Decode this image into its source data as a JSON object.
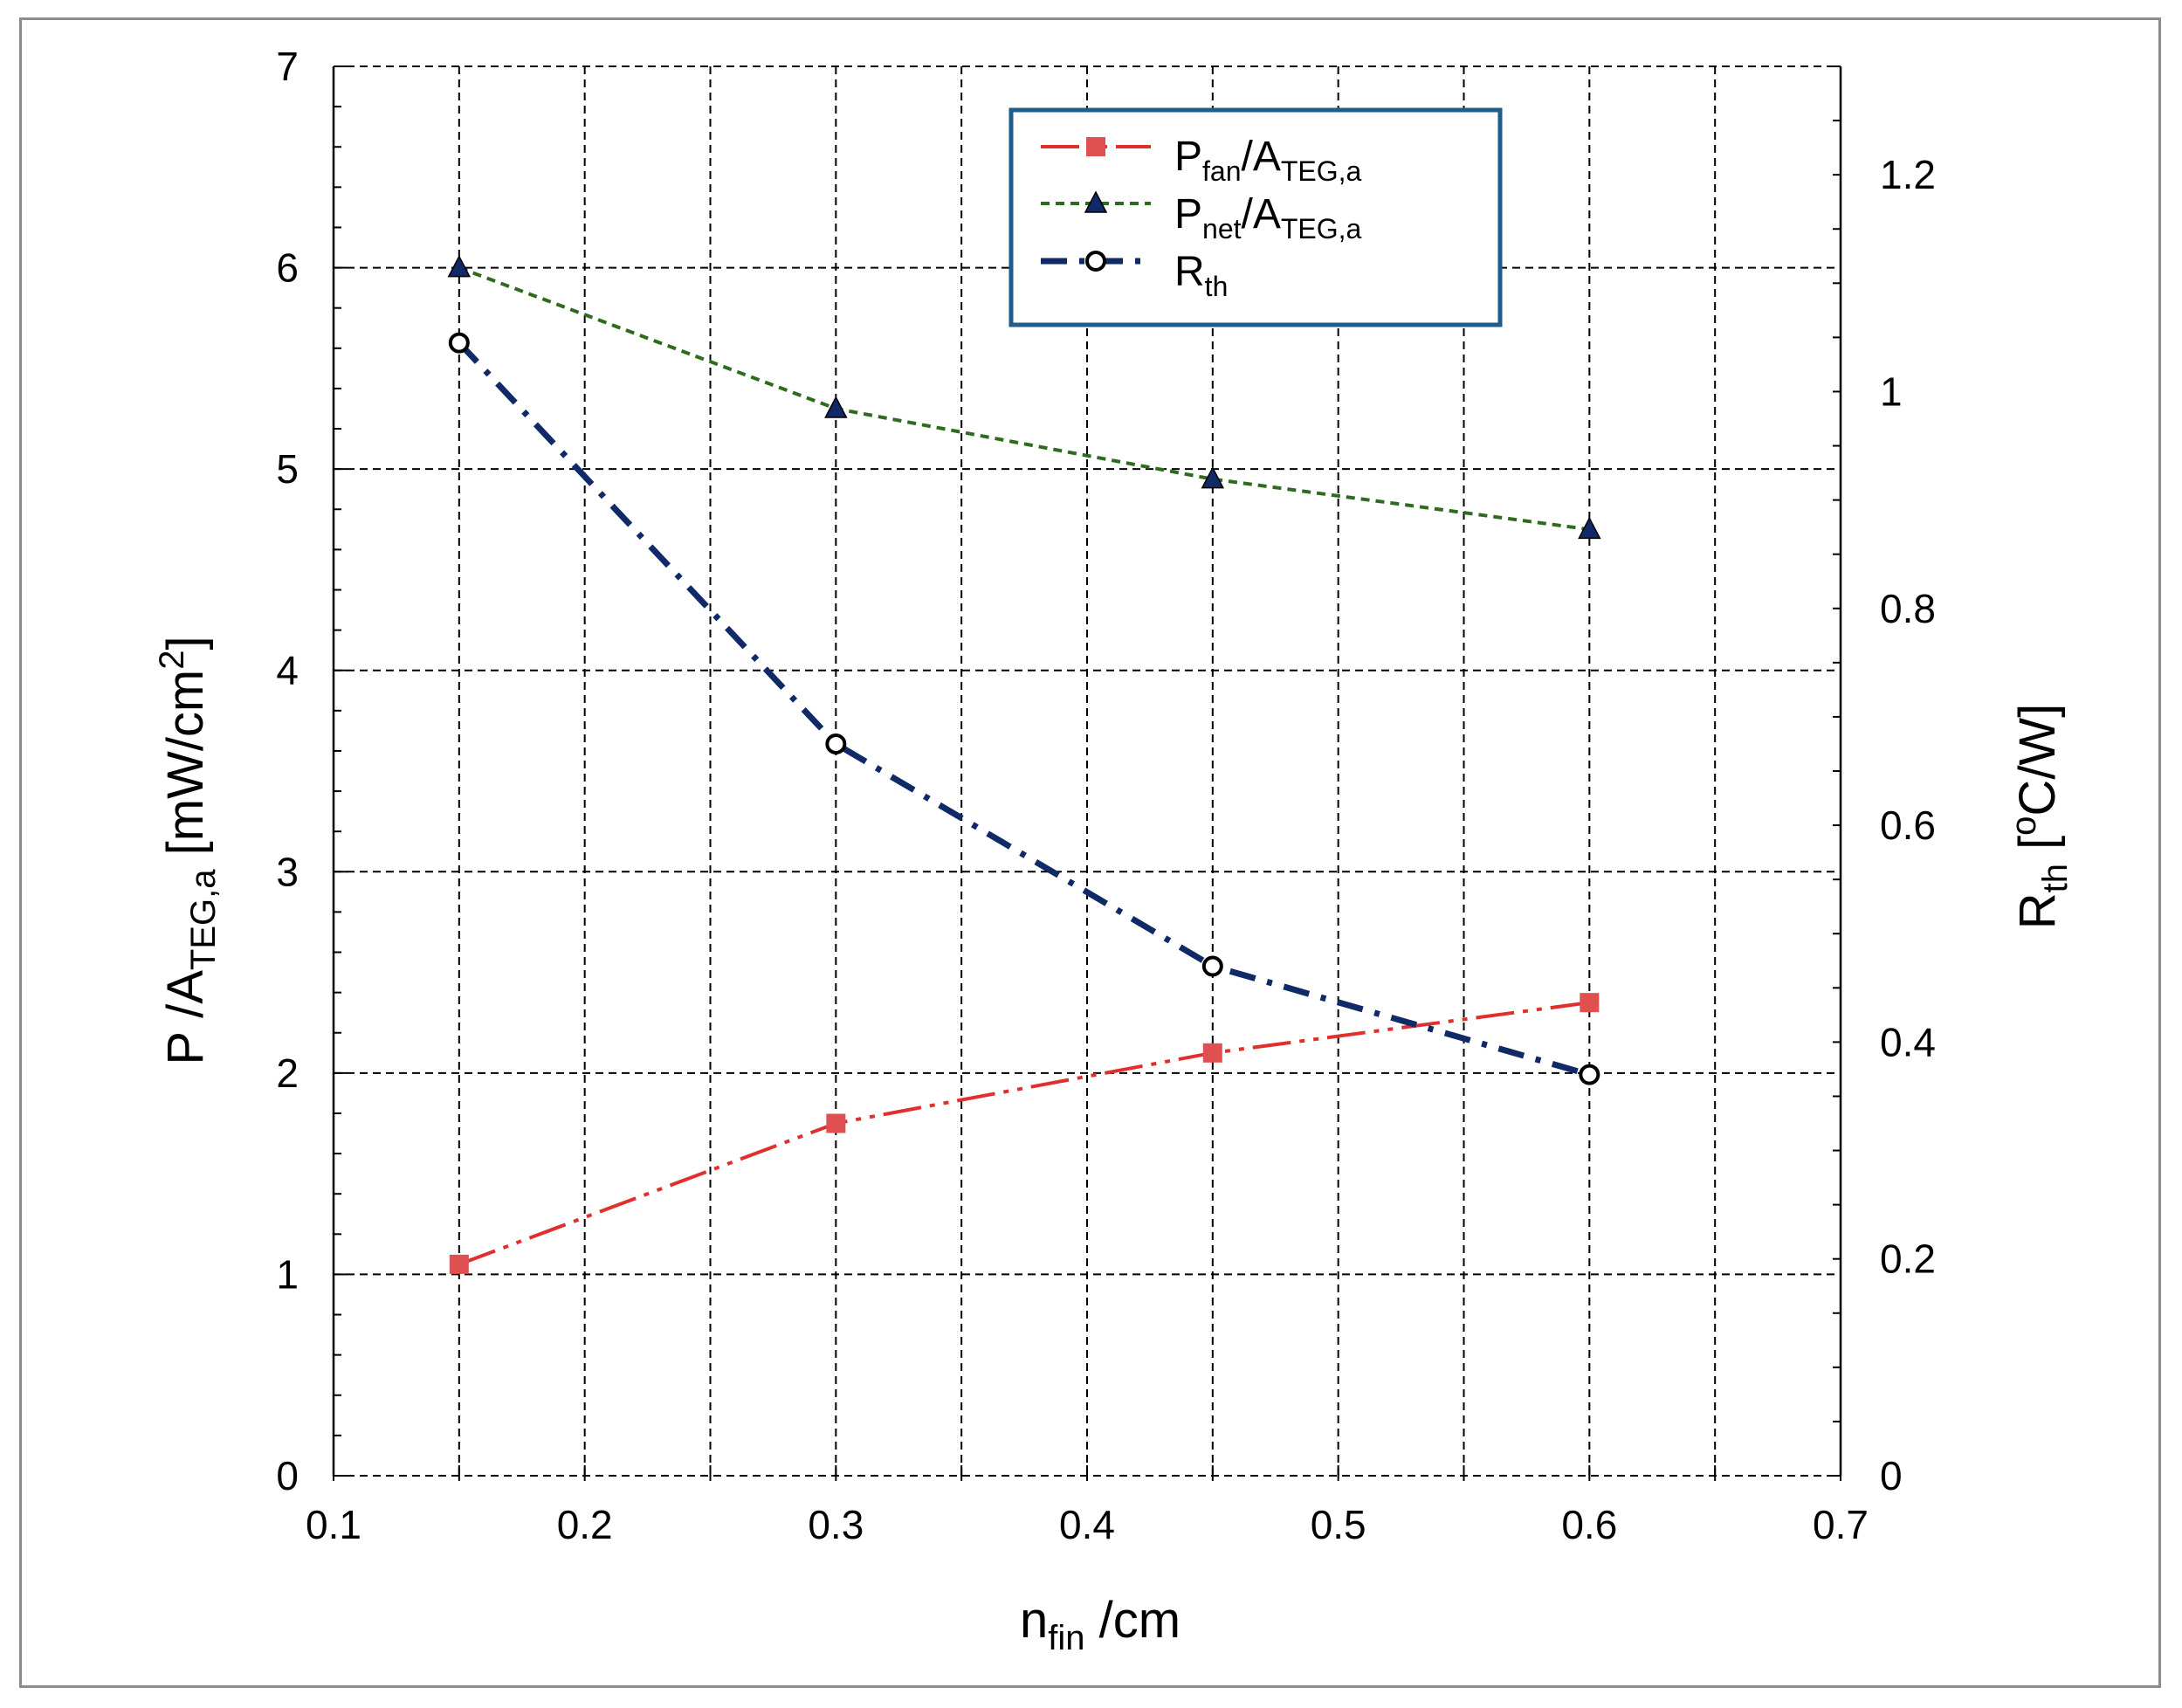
{
  "chart_data": {
    "type": "line",
    "x": [
      0.15,
      0.3,
      0.45,
      0.6
    ],
    "xlabel": {
      "main": "n",
      "sub": "fin",
      "rest": " /cm"
    },
    "ylabel": {
      "main": "P /A",
      "sub": "TEG,a",
      "rest": " [mW/cm",
      "sup": "2",
      "end": "]"
    },
    "y2label": {
      "main": "R",
      "sub": "th",
      "rest": " [",
      "sup": "o",
      "end": "C/W]"
    },
    "xlim": [
      0.1,
      0.7
    ],
    "ylim": [
      0,
      7
    ],
    "y2lim": [
      0,
      1.3
    ],
    "xticks": [
      "0.1",
      "0.2",
      "0.3",
      "0.4",
      "0.5",
      "0.6",
      "0.7"
    ],
    "yticks": [
      "0",
      "1",
      "2",
      "3",
      "4",
      "5",
      "6",
      "7"
    ],
    "y2ticks": [
      "0",
      "0.2",
      "0.4",
      "0.6",
      "0.8",
      "1",
      "1.2"
    ],
    "grid": true,
    "legend_position": "top-right",
    "series": [
      {
        "name": "P_fan/A_TEG,a",
        "legend": {
          "main": "P",
          "sub": "fan",
          "mid": "/A",
          "sub2": "TEG,a"
        },
        "axis": "left",
        "marker": "square",
        "color": "#e0302e",
        "values": [
          1.05,
          1.75,
          2.1,
          2.35
        ]
      },
      {
        "name": "P_net/A_TEG,a",
        "legend": {
          "main": "P",
          "sub": "net",
          "mid": "/A",
          "sub2": "TEG,a"
        },
        "axis": "left",
        "marker": "triangle",
        "color": "#2e6b1e",
        "values": [
          6.0,
          5.3,
          4.95,
          4.7
        ]
      },
      {
        "name": "R_th",
        "legend": {
          "main": "R",
          "sub": "th",
          "mid": "",
          "sub2": ""
        },
        "axis": "right",
        "marker": "circle",
        "color": "#0f2a66",
        "values": [
          1.045,
          0.675,
          0.47,
          0.37
        ]
      }
    ]
  }
}
